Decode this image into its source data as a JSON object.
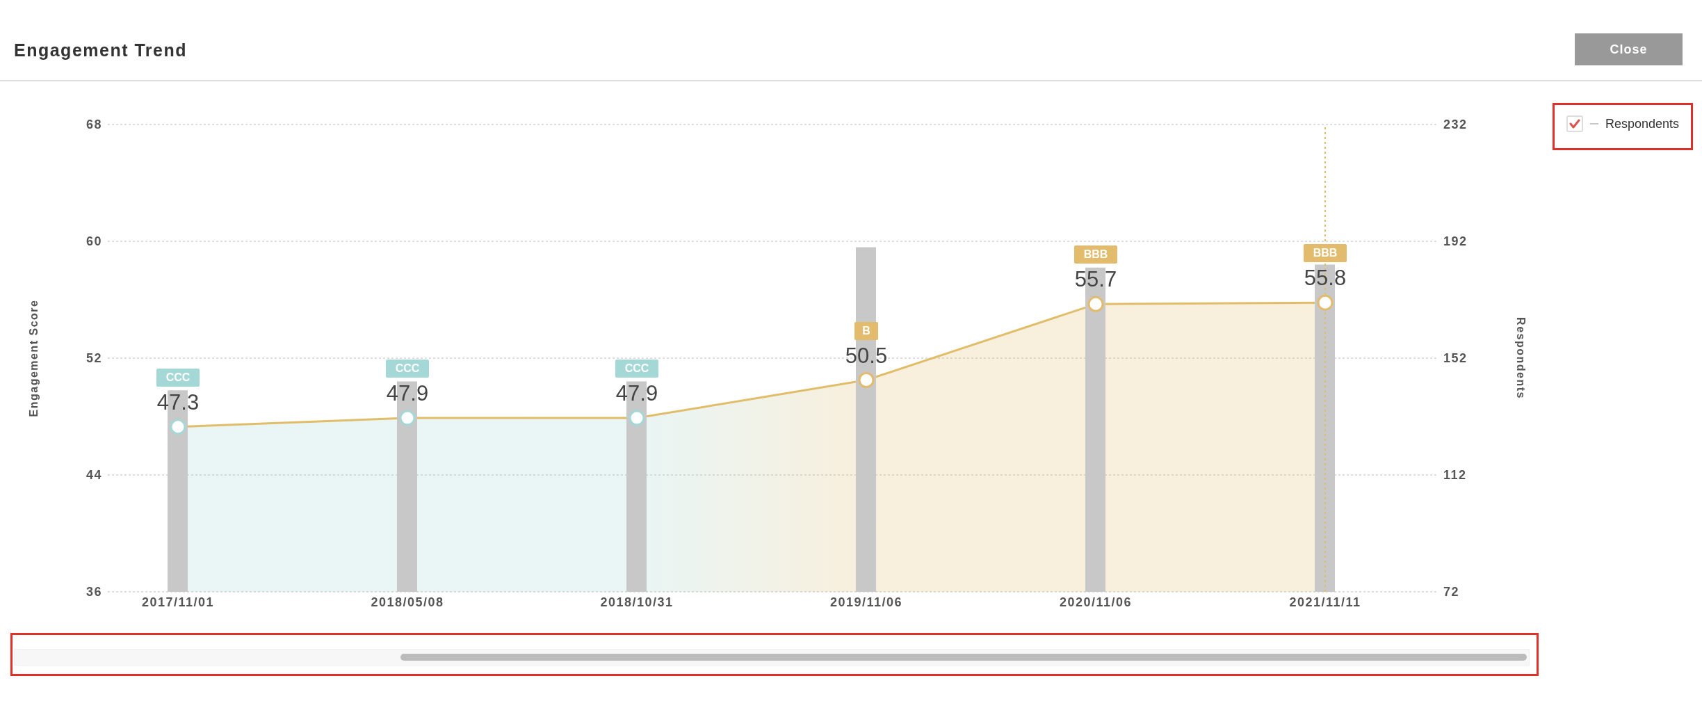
{
  "chart_data": {
    "type": "area",
    "title": "Engagement Trend",
    "ylabel": "Engagement Score",
    "y2label": "Respondents",
    "categories": [
      "2017/11/01",
      "2018/05/08",
      "2018/10/31",
      "2019/11/06",
      "2020/11/06",
      "2021/11/11"
    ],
    "series": [
      {
        "type": "bar",
        "name": "Respondents",
        "color": "#c8c8c8",
        "axis": "y2",
        "values": [
          141,
          144,
          144,
          190,
          183,
          184
        ]
      },
      {
        "color": "#e1bd6a",
        "colors": [
          "#a3d8d6",
          "#a3d8d6",
          "#a3d8d6",
          "#e2bc6c",
          "#e2bc6c",
          "#e2bc6c"
        ],
        "values": [
          47.3,
          47.9,
          47.9,
          50.5,
          55.7,
          55.8
        ],
        "value_labels": [
          "47.3",
          "47.9",
          "47.9",
          "50.5",
          "55.7",
          "55.8"
        ]
      }
    ],
    "annotations": [
      "Close",
      "CCC",
      "CCC",
      "CCC",
      "B",
      "BBB",
      "BBB"
    ],
    "ref_lines": [
      {
        "axis": "x",
        "value": "2021/11/11",
        "color": "#e1bd6a",
        "line_style": "dotted"
      }
    ],
    "ylim": [
      36,
      68
    ],
    "yticks": [
      36,
      44,
      52,
      60,
      68
    ],
    "y2lim": [
      72,
      232
    ],
    "y2ticks": [
      72,
      112,
      152,
      192,
      232
    ],
    "grid": "y",
    "legend": "top right",
    "marker": "circle"
  }
}
